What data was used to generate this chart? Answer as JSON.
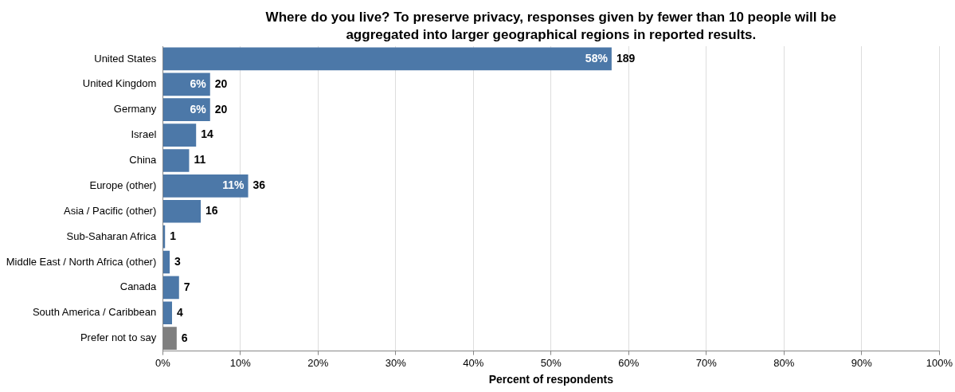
{
  "chart_data": {
    "type": "bar",
    "orientation": "horizontal",
    "title": "Where do you live? To preserve privacy, responses given by fewer than 10 people will be aggregated into larger geographical regions in reported results.",
    "xlabel": "Percent of respondents",
    "categories": [
      "United States",
      "United Kingdom",
      "Germany",
      "Israel",
      "China",
      "Europe (other)",
      "Asia / Pacific (other)",
      "Sub-Saharan Africa",
      "Middle East / North Africa (other)",
      "Canada",
      "South America / Caribbean",
      "Prefer not to say"
    ],
    "values": [
      57.8,
      6.1,
      6.1,
      4.3,
      3.4,
      11.0,
      4.9,
      0.3,
      0.9,
      2.1,
      1.2,
      1.8
    ],
    "colors": [
      "#4c78a8",
      "#4c78a8",
      "#4c78a8",
      "#4c78a8",
      "#4c78a8",
      "#4c78a8",
      "#4c78a8",
      "#4c78a8",
      "#4c78a8",
      "#4c78a8",
      "#4c78a8",
      "#7f7f7f"
    ],
    "value_labels": [
      "58%",
      "6%",
      "6%",
      null,
      null,
      "11%",
      null,
      null,
      null,
      null,
      null,
      null
    ],
    "annotations": [
      {
        "text": "189",
        "x": 57.8,
        "y": "United States"
      },
      {
        "text": "20",
        "x": 6.1,
        "y": "United Kingdom"
      },
      {
        "text": "20",
        "x": 6.1,
        "y": "Germany"
      },
      {
        "text": "14",
        "x": 4.3,
        "y": "Israel"
      },
      {
        "text": "11",
        "x": 3.4,
        "y": "China"
      },
      {
        "text": "36",
        "x": 11.0,
        "y": "Europe (other)"
      },
      {
        "text": "16",
        "x": 4.9,
        "y": "Asia / Pacific (other)"
      },
      {
        "text": "1",
        "x": 0.3,
        "y": "Sub-Saharan Africa"
      },
      {
        "text": "3",
        "x": 0.9,
        "y": "Middle East / North Africa (other)"
      },
      {
        "text": "7",
        "x": 2.1,
        "y": "Canada"
      },
      {
        "text": "4",
        "x": 1.2,
        "y": "South America / Caribbean"
      },
      {
        "text": "6",
        "x": 1.8,
        "y": "Prefer not to say"
      }
    ],
    "xlim": [
      0,
      100
    ],
    "xticks": [
      {
        "value": 0,
        "label": "0%"
      },
      {
        "value": 10,
        "label": "10%"
      },
      {
        "value": 20,
        "label": "20%"
      },
      {
        "value": 30,
        "label": "30%"
      },
      {
        "value": 40,
        "label": "40%"
      },
      {
        "value": 50,
        "label": "50%"
      },
      {
        "value": 60,
        "label": "60%"
      },
      {
        "value": 70,
        "label": "70%"
      },
      {
        "value": 80,
        "label": "80%"
      },
      {
        "value": 90,
        "label": "90%"
      },
      {
        "value": 100,
        "label": "100%"
      }
    ],
    "grid": "x",
    "legend": false
  }
}
